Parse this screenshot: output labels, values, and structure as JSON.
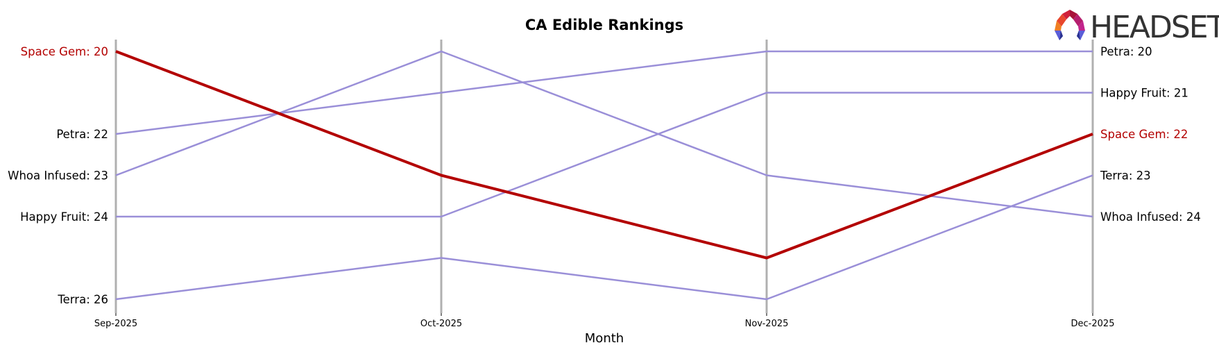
{
  "chart_data": {
    "type": "line",
    "subtype": "bump",
    "title": "CA Edible Rankings",
    "xlabel": "Month",
    "ylabel": "",
    "categories": [
      "Sep-2025",
      "Oct-2025",
      "Nov-2025",
      "Dec-2025"
    ],
    "y_inverted": true,
    "ylim": [
      20,
      26
    ],
    "grid": false,
    "legend": "none (direct labels at first and last month)",
    "highlight_color": "#b30000",
    "default_color": "#9a8fd8",
    "axis_color": "#b0b0b0",
    "series": [
      {
        "name": "Space Gem",
        "values": [
          20,
          23,
          25,
          22
        ],
        "highlight": true
      },
      {
        "name": "Petra",
        "values": [
          22,
          21,
          20,
          20
        ],
        "highlight": false
      },
      {
        "name": "Whoa Infused",
        "values": [
          23,
          20,
          23,
          24
        ],
        "highlight": false
      },
      {
        "name": "Happy Fruit",
        "values": [
          24,
          24,
          21,
          21
        ],
        "highlight": false
      },
      {
        "name": "Terra",
        "values": [
          26,
          25,
          26,
          23
        ],
        "highlight": false
      }
    ],
    "left_labels": [
      {
        "text": "Space Gem: 20",
        "highlight": true
      },
      {
        "text": "Petra: 22",
        "highlight": false
      },
      {
        "text": "Whoa Infused: 23",
        "highlight": false
      },
      {
        "text": "Happy Fruit: 24",
        "highlight": false
      },
      {
        "text": "Terra: 26",
        "highlight": false
      }
    ],
    "right_labels": [
      {
        "text": "Petra: 20",
        "highlight": false
      },
      {
        "text": "Happy Fruit: 21",
        "highlight": false
      },
      {
        "text": "Space Gem: 22",
        "highlight": true
      },
      {
        "text": "Terra: 23",
        "highlight": false
      },
      {
        "text": "Whoa Infused: 24",
        "highlight": false
      }
    ]
  },
  "logo": {
    "text": "HEADSET",
    "icon": "headset-logo-icon"
  }
}
